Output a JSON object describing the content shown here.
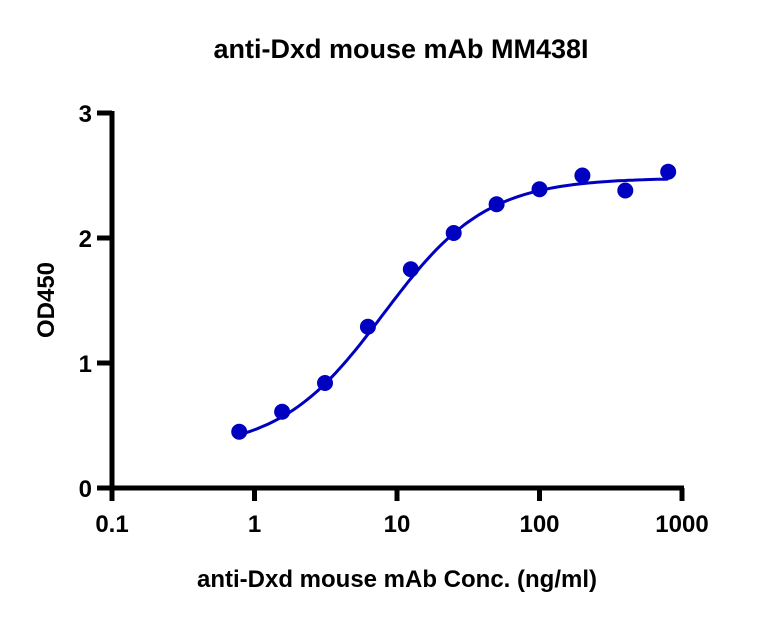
{
  "chart_data": {
    "type": "scatter",
    "title": "anti-Dxd mouse mAb MM438I",
    "xlabel": "anti-Dxd mouse mAb Conc. (ng/ml)",
    "ylabel": "OD450",
    "xscale": "log",
    "xlim": [
      0.1,
      1000
    ],
    "ylim": [
      0,
      3
    ],
    "xticks": [
      "0.1",
      "1",
      "10",
      "100",
      "1000"
    ],
    "yticks": [
      "0",
      "1",
      "2",
      "3"
    ],
    "grid": false,
    "color": "#0000C0",
    "fit": "sigmoidal curve",
    "series": [
      {
        "x": [
          0.78125,
          1.5625,
          3.125,
          6.25,
          12.5,
          25,
          50,
          100,
          200,
          400,
          800
        ],
        "y": [
          0.45,
          0.61,
          0.84,
          1.29,
          1.75,
          2.04,
          2.27,
          2.39,
          2.5,
          2.38,
          2.53
        ]
      }
    ]
  }
}
